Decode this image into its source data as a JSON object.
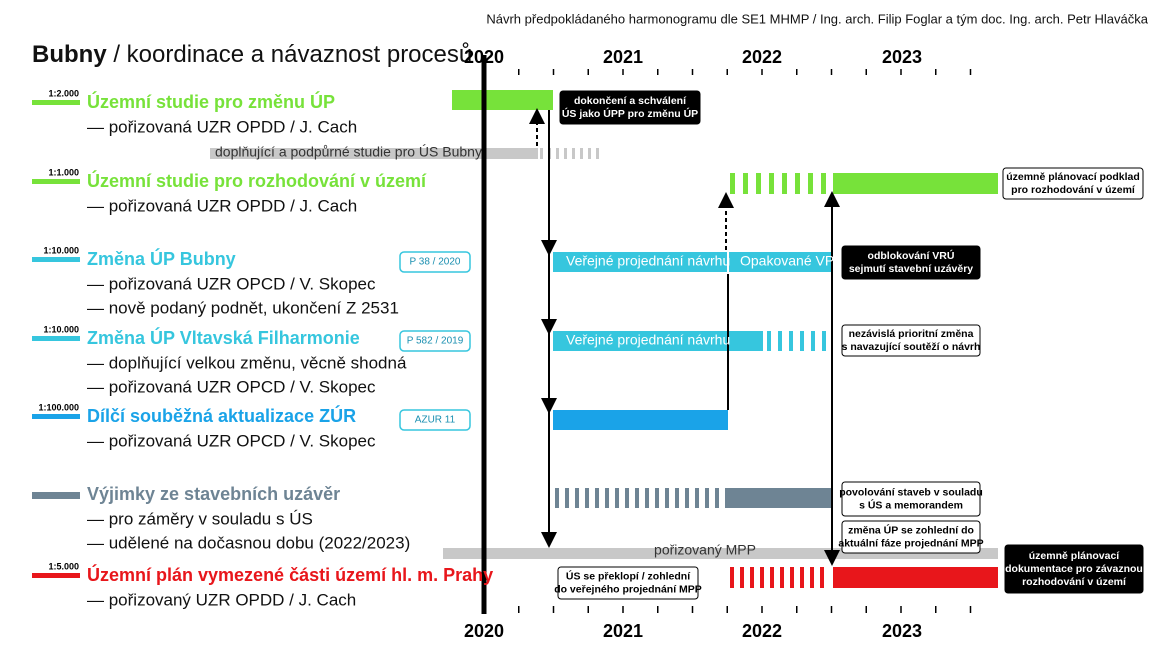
{
  "header": {
    "note": "Návrh předpokládaného harmonogramu dle SE1 MHMP / Ing. arch. Filip Foglar a tým doc. Ing. arch. Petr Hlaváčka",
    "title_bold": "Bubny",
    "title_rest": "/ koordinace a návaznost procesů"
  },
  "years": [
    "2020",
    "2021",
    "2022",
    "2023"
  ],
  "rows": [
    {
      "scale": "1:2.000",
      "title": "Územní studie pro změnu ÚP",
      "lines": [
        "— pořizovaná UZR OPDD / J. Cach"
      ]
    },
    {
      "scale": "1:1.000",
      "title": "Územní studie pro rozhodování v území",
      "lines": [
        "— pořizovaná UZR OPDD / J. Cach"
      ]
    },
    {
      "scale": "1:10.000",
      "title": "Změna ÚP Bubny",
      "lines": [
        "— pořizovaná UZR OPCD / V. Skopec",
        "— nově podaný podnět, ukončení Z 2531"
      ],
      "badge": "P 38 / 2020"
    },
    {
      "scale": "1:10.000",
      "title": "Změna ÚP Vltavská Filharmonie",
      "lines": [
        "— doplňující velkou změnu, věcně shodná",
        "— pořizovaná UZR OPCD / V. Skopec"
      ],
      "badge": "P 582 / 2019"
    },
    {
      "scale": "1:100.000",
      "title": "Dílčí souběžná aktualizace ZÚR",
      "lines": [
        "— pořizovaná UZR OPCD / V. Skopec"
      ],
      "badge": "AZUR 11"
    },
    {
      "title": "Výjimky ze stavebních uzávěr",
      "lines": [
        "— pro záměry v souladu s ÚS",
        "— udělené na dočasnou dobu (2022/2023)"
      ]
    },
    {
      "scale": "1:5.000",
      "title": "Územní plán vymezené části území hl. m. Prahy",
      "lines": [
        "— pořizovaný UZR OPDD / J. Cach"
      ]
    }
  ],
  "bar_labels": [
    "doplňující a podpůrné studie pro ÚS Bubny",
    "Veřejné projednání návrhu",
    "Opakované VP",
    "Veřejné projednání návrhu",
    "pořizovaný MPP"
  ],
  "callouts": [
    [
      "dokončení a schválení",
      "ÚS jako ÚPP pro změnu ÚP"
    ],
    [
      "územně plánovací podklad",
      "pro rozhodování v území"
    ],
    [
      "odblokování VRÚ",
      "sejmutí stavební uzávěry"
    ],
    [
      "nezávislá prioritní změna",
      "s navazující soutěží o návrh"
    ],
    [
      "povolování staveb v souladu",
      "s ÚS a memorandem"
    ],
    [
      "změna ÚP se zohlední do",
      "aktuální fáze projednání MPP"
    ],
    [
      "územně plánovací",
      "dokumentace pro závaznou",
      "rozhodování v území"
    ],
    [
      "ÚS se překlopí / zohlední",
      "do veřejného projednání MPP"
    ]
  ]
}
